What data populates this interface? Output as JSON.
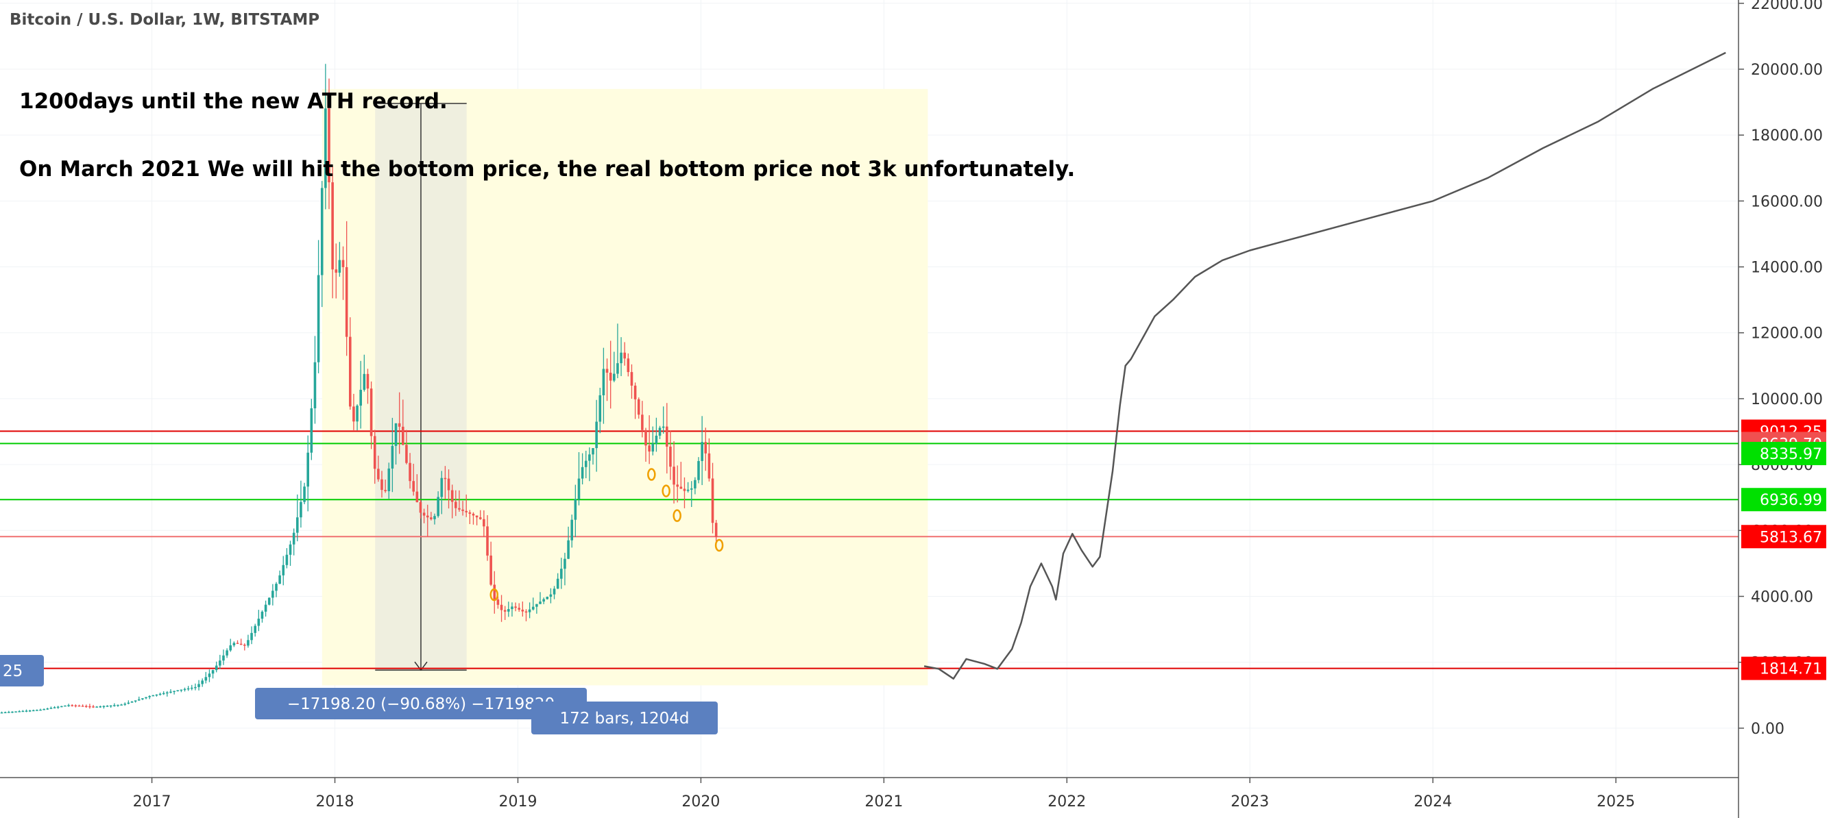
{
  "header": {
    "title": "Bitcoin / U.S. Dollar, 1W, BITSTAMP"
  },
  "annotation": {
    "line1": "1200days until the new ATH record.",
    "line2": "On March 2021 We will hit the bottom price, the real bottom price not 3k unfortunately."
  },
  "measure": {
    "price_label": "−17198.20 (−90.68%) −1719820",
    "bars_label": "172 bars, 1204d",
    "left_cut_label": "25"
  },
  "colors": {
    "up": "#26a69a",
    "down": "#ef5350",
    "red_line": "#e00000",
    "green_line": "#00cc00",
    "highlight": "#fffde0",
    "measure_fill": "#efefdf",
    "measure_label_bg": "#5b80c0",
    "forecast_line": "#555555",
    "marker": "#f0a000"
  },
  "chart_data": {
    "type": "candlestick",
    "title": "Bitcoin / U.S. Dollar, 1W, BITSTAMP",
    "x_tick_labels": [
      "2017",
      "2018",
      "2019",
      "2020",
      "2021",
      "2022",
      "2023",
      "2024",
      "2025"
    ],
    "y_tick_labels": [
      "0.00",
      "2000.00",
      "4000.00",
      "6000.00",
      "8000.00",
      "10000.00",
      "12000.00",
      "14000.00",
      "16000.00",
      "18000.00",
      "20000.00",
      "22000.00"
    ],
    "ylim": [
      -1500,
      22100
    ],
    "xlim": [
      2016.17,
      2025.67
    ],
    "grid": true,
    "price_scale_position": "right",
    "horizontal_levels": [
      {
        "value": 9012.25,
        "label": "9012.25",
        "color": "#e00000",
        "label_bg": "#ff0000"
      },
      {
        "value": 8639.7,
        "label": "8639.70",
        "color": "#00cc00",
        "label_bg": "#f05050"
      },
      {
        "value": 6936.99,
        "label": "6936.99",
        "color": "#00cc00",
        "label_bg": "#00e000"
      },
      {
        "value": 5813.67,
        "label": "5813.67",
        "color": "#f07070",
        "label_bg": "#ff0000"
      },
      {
        "value": 1814.71,
        "label": "1814.71",
        "color": "#e00000",
        "label_bg": "#ff0000"
      }
    ],
    "last_price": {
      "value": 8335.97,
      "label": "8335.97",
      "label_bg": "#00e000"
    },
    "price_path": [
      [
        2016.17,
        470
      ],
      [
        2016.4,
        560
      ],
      [
        2016.55,
        700
      ],
      [
        2016.7,
        650
      ],
      [
        2016.85,
        720
      ],
      [
        2017.0,
        980
      ],
      [
        2017.15,
        1150
      ],
      [
        2017.25,
        1250
      ],
      [
        2017.35,
        1800
      ],
      [
        2017.45,
        2600
      ],
      [
        2017.52,
        2500
      ],
      [
        2017.6,
        3400
      ],
      [
        2017.7,
        4500
      ],
      [
        2017.78,
        5800
      ],
      [
        2017.85,
        7500
      ],
      [
        2017.9,
        11000
      ],
      [
        2017.94,
        16500
      ],
      [
        2017.96,
        19000
      ],
      [
        2018.0,
        13500
      ],
      [
        2018.05,
        14500
      ],
      [
        2018.1,
        9000
      ],
      [
        2018.18,
        11000
      ],
      [
        2018.22,
        8000
      ],
      [
        2018.28,
        7000
      ],
      [
        2018.35,
        9500
      ],
      [
        2018.42,
        7500
      ],
      [
        2018.48,
        6500
      ],
      [
        2018.55,
        6300
      ],
      [
        2018.6,
        7800
      ],
      [
        2018.66,
        6700
      ],
      [
        2018.75,
        6500
      ],
      [
        2018.82,
        6300
      ],
      [
        2018.87,
        4000
      ],
      [
        2018.93,
        3500
      ],
      [
        2018.98,
        3700
      ],
      [
        2019.05,
        3500
      ],
      [
        2019.12,
        3800
      ],
      [
        2019.2,
        4100
      ],
      [
        2019.27,
        5200
      ],
      [
        2019.35,
        7800
      ],
      [
        2019.42,
        8500
      ],
      [
        2019.48,
        11000
      ],
      [
        2019.52,
        10500
      ],
      [
        2019.58,
        11500
      ],
      [
        2019.65,
        10000
      ],
      [
        2019.72,
        8300
      ],
      [
        2019.8,
        9300
      ],
      [
        2019.86,
        7400
      ],
      [
        2019.92,
        7200
      ],
      [
        2019.97,
        7300
      ],
      [
        2020.02,
        8800
      ],
      [
        2020.05,
        7900
      ],
      [
        2020.08,
        5800
      ]
    ],
    "forecast_path": [
      [
        2021.22,
        1880
      ],
      [
        2021.3,
        1800
      ],
      [
        2021.38,
        1500
      ],
      [
        2021.45,
        2100
      ],
      [
        2021.55,
        1950
      ],
      [
        2021.62,
        1800
      ],
      [
        2021.7,
        2400
      ],
      [
        2021.75,
        3200
      ],
      [
        2021.8,
        4300
      ],
      [
        2021.86,
        5000
      ],
      [
        2021.92,
        4300
      ],
      [
        2021.94,
        3900
      ],
      [
        2021.98,
        5300
      ],
      [
        2022.03,
        5900
      ],
      [
        2022.08,
        5400
      ],
      [
        2022.14,
        4900
      ],
      [
        2022.18,
        5200
      ],
      [
        2022.25,
        7800
      ],
      [
        2022.29,
        9800
      ],
      [
        2022.32,
        11000
      ],
      [
        2022.35,
        11200
      ],
      [
        2022.42,
        11900
      ],
      [
        2022.48,
        12500
      ],
      [
        2022.58,
        13000
      ],
      [
        2022.7,
        13700
      ],
      [
        2022.85,
        14200
      ],
      [
        2023.0,
        14500
      ],
      [
        2023.2,
        14800
      ],
      [
        2023.6,
        15400
      ],
      [
        2024.0,
        16000
      ],
      [
        2024.3,
        16700
      ],
      [
        2024.6,
        17600
      ],
      [
        2024.9,
        18400
      ],
      [
        2025.2,
        19400
      ],
      [
        2025.6,
        20500
      ]
    ],
    "highlight_box": {
      "x0": 2017.93,
      "x1": 2021.24,
      "y0": 1300,
      "y1": 19400
    },
    "measure": {
      "x0": 2018.22,
      "x1": 2018.72,
      "top": 18960,
      "bottom": 1762
    },
    "markers": [
      {
        "x": 2018.87,
        "y": 4050
      },
      {
        "x": 2019.73,
        "y": 7700
      },
      {
        "x": 2019.81,
        "y": 7200
      },
      {
        "x": 2019.87,
        "y": 6450
      },
      {
        "x": 2020.1,
        "y": 5550
      }
    ]
  }
}
